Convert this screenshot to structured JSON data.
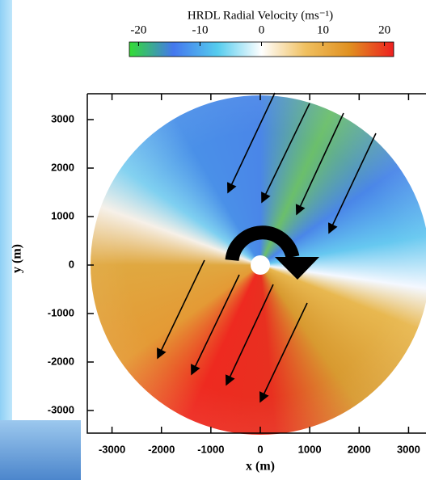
{
  "chart_data": {
    "type": "ppi",
    "title": "HRDL Radial Velocity (ms⁻¹)",
    "xlabel": "x (m)",
    "ylabel": "y (m)",
    "xlim": [
      -3500,
      3500
    ],
    "ylim": [
      -3500,
      3500
    ],
    "xticks": [
      -3000,
      -2000,
      -1000,
      0,
      1000,
      2000,
      3000
    ],
    "yticks": [
      -3000,
      -2000,
      -1000,
      0,
      1000,
      2000,
      3000
    ],
    "clim": [
      -21.5,
      21.5
    ],
    "cticks": [
      -20,
      -10,
      0,
      10,
      20
    ],
    "colormap": [
      "#33dd33",
      "#4477ee",
      "#55ccee",
      "#ffffff",
      "#f0c060",
      "#e09020",
      "#ee2020"
    ]
  }
}
